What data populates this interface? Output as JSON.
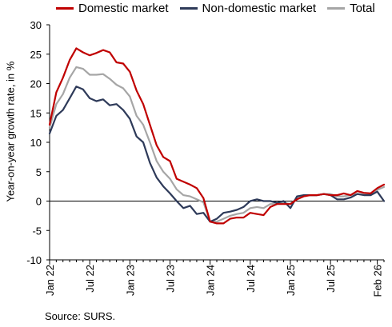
{
  "chart_data": {
    "type": "line",
    "legend": "top",
    "ylabel": "Year-on-year growth rate, in %",
    "ylim": [
      -10,
      30
    ],
    "yticks": [
      -10,
      -5,
      0,
      5,
      10,
      15,
      20,
      25,
      30
    ],
    "xticks": [
      "Jan 22",
      "Jul 22",
      "Jan 23",
      "Jul 23",
      "Jan 24",
      "Jul 24",
      "Jan 25",
      "Jul 25",
      "Feb 26"
    ],
    "xtick_index": [
      0,
      6,
      12,
      18,
      24,
      30,
      36,
      42,
      49
    ],
    "x_start": "Jan 22",
    "series": [
      {
        "name": "Domestic market",
        "color": "#c00000",
        "values": [
          13,
          18.5,
          21,
          24,
          26,
          25.3,
          24.8,
          25.2,
          25.7,
          25.3,
          23.6,
          23.4,
          22,
          18.8,
          16.5,
          13,
          9.5,
          7.5,
          6.8,
          3.8,
          3.3,
          2.8,
          2.2,
          0.5,
          -3.5,
          -3.8,
          -3.8,
          -3,
          -2.8,
          -2.8,
          -2,
          -2.2,
          -2.4,
          -1,
          -0.5,
          -0.5,
          -0.5,
          0.3,
          0.8,
          1,
          1,
          1.2,
          1,
          1,
          1.3,
          1,
          1.7,
          1.4,
          1.3,
          2.2,
          2.8
        ]
      },
      {
        "name": "Non-domestic market",
        "color": "#2e3a59",
        "values": [
          11.5,
          14.5,
          15.5,
          17.5,
          19.5,
          19,
          17.5,
          17,
          17.3,
          16.3,
          16.5,
          15.5,
          14,
          11,
          10,
          6.5,
          4,
          2.5,
          1.3,
          0,
          -1.2,
          -0.8,
          -2.2,
          -2,
          -3.5,
          -3,
          -2,
          -1.8,
          -1.5,
          -1,
          0,
          0.3,
          0,
          0,
          -0.3,
          0,
          -1.2,
          0.8,
          1,
          1,
          1,
          1.2,
          1,
          0.3,
          0.3,
          0.6,
          1.2,
          1,
          1,
          1.6,
          0
        ]
      },
      {
        "name": "Total",
        "color": "#a6a6a6",
        "values": [
          12.5,
          16.5,
          18.2,
          21,
          22.8,
          22.5,
          21.5,
          21.5,
          21.6,
          20.8,
          19.8,
          19.2,
          17.8,
          14.5,
          13,
          10,
          6.8,
          5,
          3.8,
          2,
          1,
          0.8,
          0.3,
          -0.2,
          -3.5,
          -3.5,
          -3,
          -2.5,
          -2.2,
          -2,
          -1.2,
          -1,
          -1.2,
          -0.5,
          -0.5,
          -0.3,
          -0.5,
          0.5,
          1,
          1,
          1,
          1.2,
          1.2,
          0.8,
          0.8,
          1,
          1.2,
          1.1,
          1.2,
          1.9,
          2.4
        ]
      }
    ]
  },
  "source": "Source: SURS."
}
